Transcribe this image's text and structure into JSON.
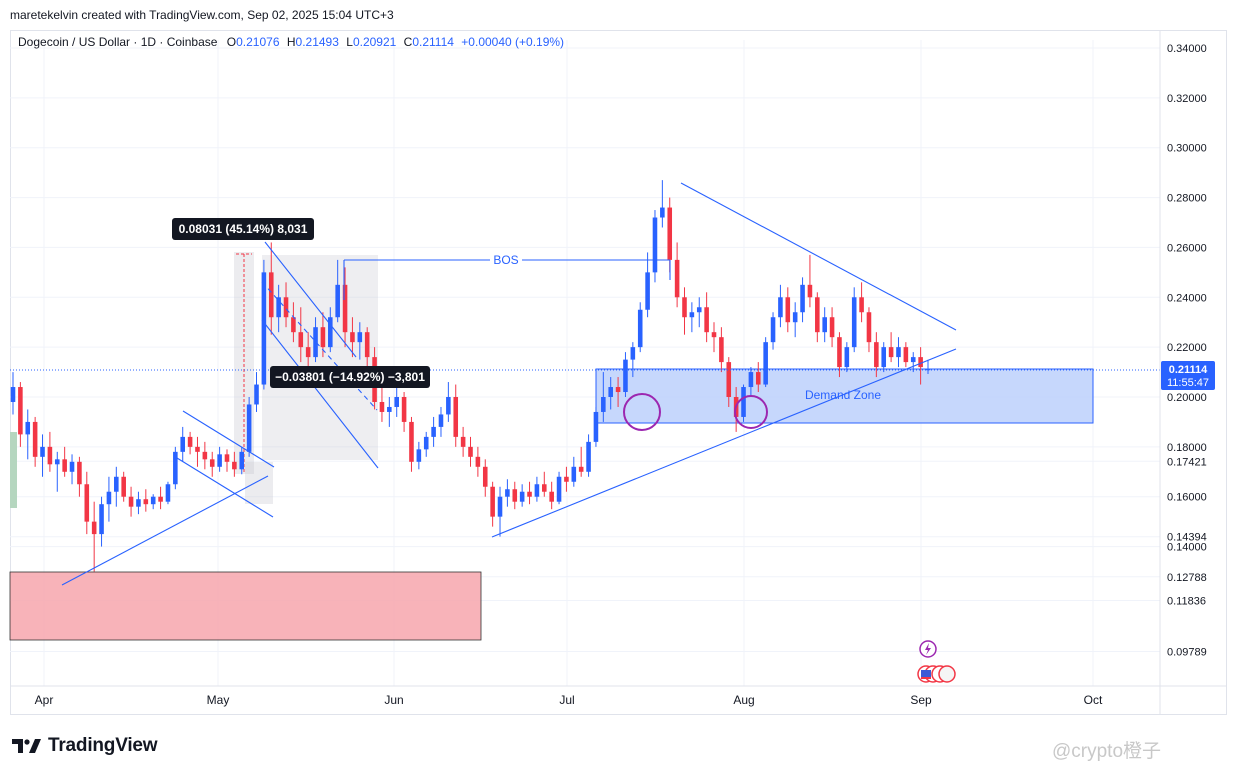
{
  "header": {
    "credit": "maretekelvin created with TradingView.com, Sep 02, 2025 15:04 UTC+3"
  },
  "legend": {
    "symbol": "Dogecoin / US Dollar · 1D · Coinbase",
    "o_label": "O",
    "o": "0.21076",
    "h_label": "H",
    "h": "0.21493",
    "l_label": "L",
    "l": "0.20921",
    "c_label": "C",
    "c": "0.21114",
    "change": "+0.00040 (+0.19%)"
  },
  "footer": {
    "brand": "TradingView",
    "watermark": "@crypto橙子"
  },
  "chart_data": {
    "type": "candlestick",
    "price_axis": {
      "labels": [
        "0.34000",
        "0.32000",
        "0.30000",
        "0.28000",
        "0.26000",
        "0.24000",
        "0.22000",
        "0.20000",
        "0.18000",
        "0.17421",
        "0.16000",
        "0.14394",
        "0.14000",
        "0.12788",
        "0.11836",
        "0.09789"
      ],
      "values": [
        0.34,
        0.32,
        0.3,
        0.28,
        0.26,
        0.24,
        0.22,
        0.2,
        0.18,
        0.17421,
        0.16,
        0.14394,
        0.14,
        0.12788,
        0.11836,
        0.09789
      ]
    },
    "time_axis": {
      "labels": [
        "Apr",
        "May",
        "Jun",
        "Jul",
        "Aug",
        "Sep",
        "Oct"
      ]
    },
    "last_price": {
      "value": "0.21114",
      "countdown": "11:55:47",
      "color": "#2962ff"
    },
    "colors": {
      "up": "#2962ff",
      "down": "#f23645",
      "accent": "#2962ff"
    },
    "candles": [
      {
        "o": 0.198,
        "h": 0.21,
        "l": 0.193,
        "c": 0.204
      },
      {
        "o": 0.204,
        "h": 0.206,
        "l": 0.18,
        "c": 0.185
      },
      {
        "o": 0.185,
        "h": 0.195,
        "l": 0.175,
        "c": 0.19
      },
      {
        "o": 0.19,
        "h": 0.192,
        "l": 0.172,
        "c": 0.176
      },
      {
        "o": 0.176,
        "h": 0.185,
        "l": 0.168,
        "c": 0.18
      },
      {
        "o": 0.18,
        "h": 0.186,
        "l": 0.17,
        "c": 0.173
      },
      {
        "o": 0.173,
        "h": 0.178,
        "l": 0.162,
        "c": 0.175
      },
      {
        "o": 0.175,
        "h": 0.18,
        "l": 0.168,
        "c": 0.17
      },
      {
        "o": 0.17,
        "h": 0.177,
        "l": 0.165,
        "c": 0.174
      },
      {
        "o": 0.174,
        "h": 0.176,
        "l": 0.16,
        "c": 0.165
      },
      {
        "o": 0.165,
        "h": 0.17,
        "l": 0.145,
        "c": 0.15
      },
      {
        "o": 0.15,
        "h": 0.158,
        "l": 0.13,
        "c": 0.145
      },
      {
        "o": 0.145,
        "h": 0.16,
        "l": 0.14,
        "c": 0.157
      },
      {
        "o": 0.157,
        "h": 0.168,
        "l": 0.15,
        "c": 0.162
      },
      {
        "o": 0.162,
        "h": 0.172,
        "l": 0.156,
        "c": 0.168
      },
      {
        "o": 0.168,
        "h": 0.17,
        "l": 0.158,
        "c": 0.16
      },
      {
        "o": 0.16,
        "h": 0.164,
        "l": 0.152,
        "c": 0.156
      },
      {
        "o": 0.156,
        "h": 0.162,
        "l": 0.153,
        "c": 0.159
      },
      {
        "o": 0.159,
        "h": 0.163,
        "l": 0.154,
        "c": 0.157
      },
      {
        "o": 0.157,
        "h": 0.161,
        "l": 0.155,
        "c": 0.16
      },
      {
        "o": 0.16,
        "h": 0.164,
        "l": 0.155,
        "c": 0.158
      },
      {
        "o": 0.158,
        "h": 0.166,
        "l": 0.157,
        "c": 0.165
      },
      {
        "o": 0.165,
        "h": 0.18,
        "l": 0.163,
        "c": 0.178
      },
      {
        "o": 0.178,
        "h": 0.188,
        "l": 0.174,
        "c": 0.184
      },
      {
        "o": 0.184,
        "h": 0.186,
        "l": 0.177,
        "c": 0.18
      },
      {
        "o": 0.18,
        "h": 0.184,
        "l": 0.172,
        "c": 0.178
      },
      {
        "o": 0.178,
        "h": 0.182,
        "l": 0.171,
        "c": 0.175
      },
      {
        "o": 0.175,
        "h": 0.178,
        "l": 0.168,
        "c": 0.172
      },
      {
        "o": 0.172,
        "h": 0.18,
        "l": 0.17,
        "c": 0.177
      },
      {
        "o": 0.177,
        "h": 0.179,
        "l": 0.17,
        "c": 0.174
      },
      {
        "o": 0.174,
        "h": 0.178,
        "l": 0.168,
        "c": 0.171
      },
      {
        "o": 0.171,
        "h": 0.18,
        "l": 0.169,
        "c": 0.178
      },
      {
        "o": 0.178,
        "h": 0.2,
        "l": 0.176,
        "c": 0.197
      },
      {
        "o": 0.197,
        "h": 0.21,
        "l": 0.194,
        "c": 0.205
      },
      {
        "o": 0.205,
        "h": 0.255,
        "l": 0.203,
        "c": 0.25
      },
      {
        "o": 0.25,
        "h": 0.262,
        "l": 0.225,
        "c": 0.232
      },
      {
        "o": 0.232,
        "h": 0.245,
        "l": 0.226,
        "c": 0.24
      },
      {
        "o": 0.24,
        "h": 0.246,
        "l": 0.228,
        "c": 0.232
      },
      {
        "o": 0.232,
        "h": 0.238,
        "l": 0.222,
        "c": 0.226
      },
      {
        "o": 0.226,
        "h": 0.236,
        "l": 0.214,
        "c": 0.22
      },
      {
        "o": 0.22,
        "h": 0.226,
        "l": 0.21,
        "c": 0.216
      },
      {
        "o": 0.216,
        "h": 0.232,
        "l": 0.214,
        "c": 0.228
      },
      {
        "o": 0.228,
        "h": 0.234,
        "l": 0.216,
        "c": 0.22
      },
      {
        "o": 0.22,
        "h": 0.236,
        "l": 0.218,
        "c": 0.232
      },
      {
        "o": 0.232,
        "h": 0.255,
        "l": 0.23,
        "c": 0.245
      },
      {
        "o": 0.245,
        "h": 0.252,
        "l": 0.22,
        "c": 0.226
      },
      {
        "o": 0.226,
        "h": 0.232,
        "l": 0.216,
        "c": 0.222
      },
      {
        "o": 0.222,
        "h": 0.23,
        "l": 0.215,
        "c": 0.226
      },
      {
        "o": 0.226,
        "h": 0.228,
        "l": 0.212,
        "c": 0.216
      },
      {
        "o": 0.216,
        "h": 0.22,
        "l": 0.195,
        "c": 0.198
      },
      {
        "o": 0.198,
        "h": 0.205,
        "l": 0.19,
        "c": 0.194
      },
      {
        "o": 0.194,
        "h": 0.2,
        "l": 0.188,
        "c": 0.196
      },
      {
        "o": 0.196,
        "h": 0.205,
        "l": 0.192,
        "c": 0.2
      },
      {
        "o": 0.2,
        "h": 0.202,
        "l": 0.186,
        "c": 0.19
      },
      {
        "o": 0.19,
        "h": 0.192,
        "l": 0.17,
        "c": 0.174
      },
      {
        "o": 0.174,
        "h": 0.182,
        "l": 0.171,
        "c": 0.179
      },
      {
        "o": 0.179,
        "h": 0.186,
        "l": 0.176,
        "c": 0.184
      },
      {
        "o": 0.184,
        "h": 0.192,
        "l": 0.18,
        "c": 0.188
      },
      {
        "o": 0.188,
        "h": 0.196,
        "l": 0.184,
        "c": 0.193
      },
      {
        "o": 0.193,
        "h": 0.206,
        "l": 0.19,
        "c": 0.2
      },
      {
        "o": 0.2,
        "h": 0.205,
        "l": 0.18,
        "c": 0.184
      },
      {
        "o": 0.184,
        "h": 0.188,
        "l": 0.176,
        "c": 0.18
      },
      {
        "o": 0.18,
        "h": 0.184,
        "l": 0.172,
        "c": 0.176
      },
      {
        "o": 0.176,
        "h": 0.18,
        "l": 0.168,
        "c": 0.172
      },
      {
        "o": 0.172,
        "h": 0.175,
        "l": 0.16,
        "c": 0.164
      },
      {
        "o": 0.164,
        "h": 0.166,
        "l": 0.148,
        "c": 0.152
      },
      {
        "o": 0.152,
        "h": 0.164,
        "l": 0.144,
        "c": 0.16
      },
      {
        "o": 0.16,
        "h": 0.167,
        "l": 0.156,
        "c": 0.163
      },
      {
        "o": 0.163,
        "h": 0.166,
        "l": 0.155,
        "c": 0.158
      },
      {
        "o": 0.158,
        "h": 0.165,
        "l": 0.156,
        "c": 0.162
      },
      {
        "o": 0.162,
        "h": 0.166,
        "l": 0.157,
        "c": 0.16
      },
      {
        "o": 0.16,
        "h": 0.168,
        "l": 0.158,
        "c": 0.165
      },
      {
        "o": 0.165,
        "h": 0.17,
        "l": 0.16,
        "c": 0.162
      },
      {
        "o": 0.162,
        "h": 0.166,
        "l": 0.155,
        "c": 0.158
      },
      {
        "o": 0.158,
        "h": 0.17,
        "l": 0.157,
        "c": 0.168
      },
      {
        "o": 0.168,
        "h": 0.172,
        "l": 0.162,
        "c": 0.166
      },
      {
        "o": 0.166,
        "h": 0.176,
        "l": 0.164,
        "c": 0.172
      },
      {
        "o": 0.172,
        "h": 0.18,
        "l": 0.168,
        "c": 0.17
      },
      {
        "o": 0.17,
        "h": 0.185,
        "l": 0.168,
        "c": 0.182
      },
      {
        "o": 0.182,
        "h": 0.196,
        "l": 0.18,
        "c": 0.194
      },
      {
        "o": 0.194,
        "h": 0.21,
        "l": 0.19,
        "c": 0.2
      },
      {
        "o": 0.2,
        "h": 0.208,
        "l": 0.195,
        "c": 0.204
      },
      {
        "o": 0.204,
        "h": 0.208,
        "l": 0.196,
        "c": 0.202
      },
      {
        "o": 0.202,
        "h": 0.218,
        "l": 0.2,
        "c": 0.215
      },
      {
        "o": 0.215,
        "h": 0.222,
        "l": 0.208,
        "c": 0.22
      },
      {
        "o": 0.22,
        "h": 0.238,
        "l": 0.218,
        "c": 0.235
      },
      {
        "o": 0.235,
        "h": 0.258,
        "l": 0.232,
        "c": 0.25
      },
      {
        "o": 0.25,
        "h": 0.275,
        "l": 0.246,
        "c": 0.272
      },
      {
        "o": 0.272,
        "h": 0.287,
        "l": 0.268,
        "c": 0.276
      },
      {
        "o": 0.276,
        "h": 0.28,
        "l": 0.25,
        "c": 0.255
      },
      {
        "o": 0.255,
        "h": 0.262,
        "l": 0.236,
        "c": 0.24
      },
      {
        "o": 0.24,
        "h": 0.244,
        "l": 0.225,
        "c": 0.232
      },
      {
        "o": 0.232,
        "h": 0.238,
        "l": 0.226,
        "c": 0.234
      },
      {
        "o": 0.234,
        "h": 0.24,
        "l": 0.228,
        "c": 0.236
      },
      {
        "o": 0.236,
        "h": 0.242,
        "l": 0.222,
        "c": 0.226
      },
      {
        "o": 0.226,
        "h": 0.23,
        "l": 0.218,
        "c": 0.224
      },
      {
        "o": 0.224,
        "h": 0.228,
        "l": 0.21,
        "c": 0.214
      },
      {
        "o": 0.214,
        "h": 0.216,
        "l": 0.196,
        "c": 0.2
      },
      {
        "o": 0.2,
        "h": 0.204,
        "l": 0.186,
        "c": 0.192
      },
      {
        "o": 0.192,
        "h": 0.205,
        "l": 0.19,
        "c": 0.204
      },
      {
        "o": 0.204,
        "h": 0.212,
        "l": 0.2,
        "c": 0.21
      },
      {
        "o": 0.21,
        "h": 0.214,
        "l": 0.202,
        "c": 0.205
      },
      {
        "o": 0.205,
        "h": 0.224,
        "l": 0.204,
        "c": 0.222
      },
      {
        "o": 0.222,
        "h": 0.234,
        "l": 0.219,
        "c": 0.232
      },
      {
        "o": 0.232,
        "h": 0.245,
        "l": 0.228,
        "c": 0.24
      },
      {
        "o": 0.24,
        "h": 0.244,
        "l": 0.226,
        "c": 0.23
      },
      {
        "o": 0.23,
        "h": 0.238,
        "l": 0.224,
        "c": 0.234
      },
      {
        "o": 0.234,
        "h": 0.248,
        "l": 0.23,
        "c": 0.245
      },
      {
        "o": 0.245,
        "h": 0.257,
        "l": 0.236,
        "c": 0.24
      },
      {
        "o": 0.24,
        "h": 0.242,
        "l": 0.222,
        "c": 0.226
      },
      {
        "o": 0.226,
        "h": 0.236,
        "l": 0.222,
        "c": 0.232
      },
      {
        "o": 0.232,
        "h": 0.236,
        "l": 0.22,
        "c": 0.224
      },
      {
        "o": 0.224,
        "h": 0.226,
        "l": 0.208,
        "c": 0.212
      },
      {
        "o": 0.212,
        "h": 0.222,
        "l": 0.21,
        "c": 0.22
      },
      {
        "o": 0.22,
        "h": 0.244,
        "l": 0.218,
        "c": 0.24
      },
      {
        "o": 0.24,
        "h": 0.246,
        "l": 0.23,
        "c": 0.234
      },
      {
        "o": 0.234,
        "h": 0.236,
        "l": 0.218,
        "c": 0.222
      },
      {
        "o": 0.222,
        "h": 0.226,
        "l": 0.208,
        "c": 0.212
      },
      {
        "o": 0.212,
        "h": 0.222,
        "l": 0.21,
        "c": 0.22
      },
      {
        "o": 0.22,
        "h": 0.226,
        "l": 0.214,
        "c": 0.216
      },
      {
        "o": 0.216,
        "h": 0.224,
        "l": 0.212,
        "c": 0.22
      },
      {
        "o": 0.22,
        "h": 0.222,
        "l": 0.212,
        "c": 0.214
      },
      {
        "o": 0.214,
        "h": 0.218,
        "l": 0.21,
        "c": 0.216
      },
      {
        "o": 0.216,
        "h": 0.22,
        "l": 0.205,
        "c": 0.212
      },
      {
        "o": 0.21076,
        "h": 0.21493,
        "l": 0.20921,
        "c": 0.21114
      }
    ],
    "annotations": {
      "bos_label": "BOS",
      "demand_zone_label": "Demand Zone",
      "measure_up_label": "0.08031 (45.14%) 8,031",
      "measure_down_label": "−0.03801 (−14.92%) −3,801"
    }
  }
}
